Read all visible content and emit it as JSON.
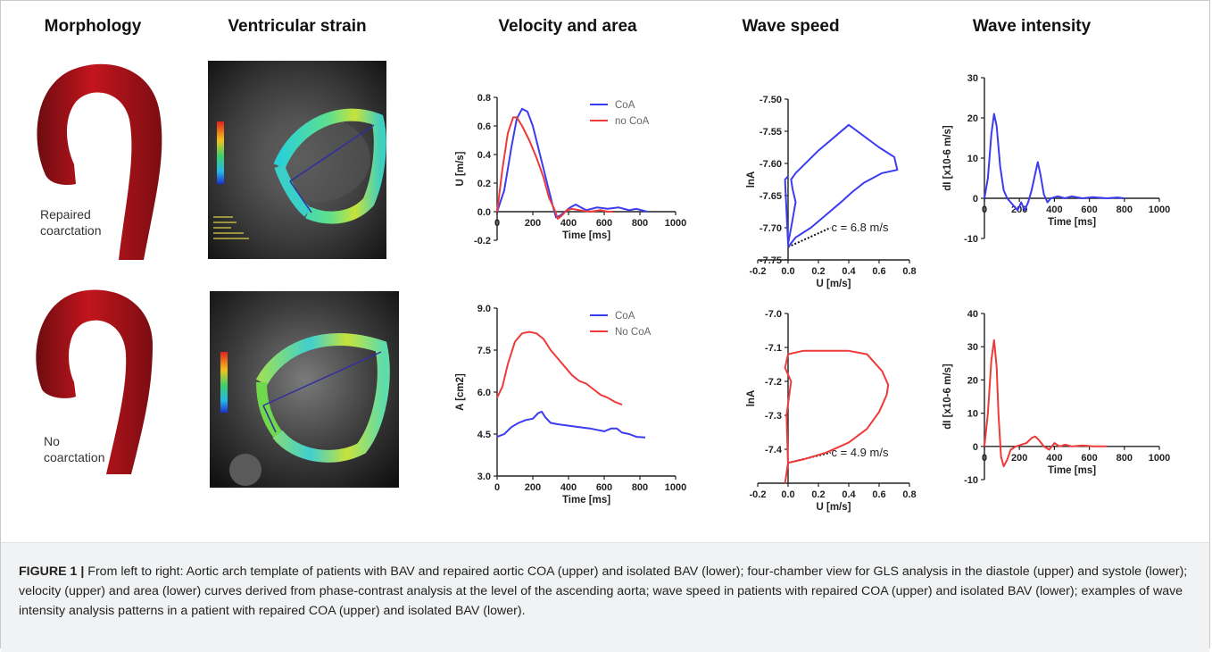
{
  "columns": {
    "morphology": "Morphology",
    "strain": "Ventricular strain",
    "velocity": "Velocity and area",
    "wave_speed": "Wave speed",
    "wave_intensity": "Wave intensity"
  },
  "morphology_labels": {
    "upper": [
      "Repaired",
      "coarctation"
    ],
    "lower": [
      "No",
      "coarctation"
    ]
  },
  "caption": {
    "figure_label": "FIGURE 1 |",
    "text": " From left to right: Aortic arch template of patients with BAV and repaired aortic COA (upper) and isolated BAV (lower); four-chamber view for GLS analysis in the diastole (upper) and systole (lower); velocity (upper) and area (lower) curves derived from phase-contrast analysis at the level of the ascending aorta; wave speed in patients with repaired COA (upper) and isolated BAV (lower); examples of wave intensity analysis patterns in a patient with repaired COA (upper) and isolated BAV (lower)."
  },
  "colors": {
    "coa": "#3b3bf0",
    "no_coa": "#ee3a3a",
    "aorta": "#b5121b"
  },
  "chart_data": [
    {
      "id": "velocity",
      "type": "line",
      "xlabel": "Time [ms]",
      "ylabel": "U [m/s]",
      "xlim": [
        0,
        1000
      ],
      "ylim": [
        -0.2,
        0.8
      ],
      "xticks": [
        0,
        200,
        400,
        600,
        800,
        1000
      ],
      "yticks": [
        -0.2,
        0.0,
        0.2,
        0.4,
        0.6,
        0.8
      ],
      "ytick_labels": [
        "-0.2",
        "0.0",
        "0.2",
        "0.4",
        "0.6",
        "0.8"
      ],
      "legend": "top-right",
      "series": [
        {
          "name": "CoA",
          "color": "#3b3bf0",
          "x": [
            0,
            40,
            80,
            110,
            140,
            170,
            200,
            240,
            280,
            310,
            330,
            350,
            380,
            410,
            440,
            470,
            500,
            560,
            620,
            680,
            740,
            780,
            810,
            840
          ],
          "y": [
            0,
            0.15,
            0.45,
            0.65,
            0.72,
            0.7,
            0.6,
            0.4,
            0.2,
            0.05,
            -0.04,
            -0.03,
            0,
            0.03,
            0.05,
            0.03,
            0.01,
            0.03,
            0.02,
            0.03,
            0.01,
            0.02,
            0.01,
            0
          ]
        },
        {
          "name": "no CoA",
          "color": "#ee3a3a",
          "x": [
            0,
            30,
            60,
            90,
            110,
            140,
            180,
            220,
            260,
            290,
            320,
            340,
            360,
            390,
            420,
            460,
            520,
            580,
            620,
            650
          ],
          "y": [
            0,
            0.3,
            0.55,
            0.66,
            0.66,
            0.6,
            0.5,
            0.38,
            0.24,
            0.1,
            0.02,
            -0.05,
            -0.03,
            0.01,
            0.02,
            0.01,
            0,
            0.01,
            0,
            0
          ]
        }
      ]
    },
    {
      "id": "area",
      "type": "line",
      "xlabel": "Time [ms]",
      "ylabel": "A [cm2]",
      "xlim": [
        0,
        1000
      ],
      "ylim": [
        3.0,
        9.0
      ],
      "xticks": [
        0,
        200,
        400,
        600,
        800,
        1000
      ],
      "yticks": [
        3.0,
        4.5,
        6.0,
        7.5,
        9.0
      ],
      "ytick_labels": [
        "3.0",
        "4.5",
        "6.0",
        "7.5",
        "9.0"
      ],
      "legend": "top-right",
      "series": [
        {
          "name": "CoA",
          "color": "#3b3bf0",
          "x": [
            0,
            40,
            80,
            120,
            160,
            200,
            230,
            250,
            270,
            300,
            340,
            400,
            460,
            520,
            560,
            600,
            640,
            670,
            700,
            740,
            780,
            830
          ],
          "y": [
            4.4,
            4.5,
            4.75,
            4.9,
            5.0,
            5.05,
            5.25,
            5.3,
            5.1,
            4.9,
            4.85,
            4.8,
            4.75,
            4.7,
            4.65,
            4.6,
            4.7,
            4.7,
            4.55,
            4.5,
            4.4,
            4.38
          ]
        },
        {
          "name": "No CoA",
          "color": "#ee3a3a",
          "x": [
            0,
            30,
            60,
            100,
            140,
            180,
            220,
            260,
            300,
            340,
            380,
            420,
            460,
            500,
            540,
            580,
            620,
            660,
            700
          ],
          "y": [
            5.8,
            6.2,
            7.0,
            7.8,
            8.1,
            8.15,
            8.1,
            7.9,
            7.5,
            7.2,
            6.9,
            6.6,
            6.4,
            6.3,
            6.1,
            5.9,
            5.8,
            5.65,
            5.55
          ]
        }
      ]
    },
    {
      "id": "wave-speed-upper",
      "type": "line",
      "xlabel": "U [m/s]",
      "ylabel": "lnA",
      "xlim": [
        -0.2,
        0.8
      ],
      "ylim": [
        -7.75,
        -7.5
      ],
      "xticks": [
        -0.2,
        0.0,
        0.2,
        0.4,
        0.6,
        0.8
      ],
      "xtick_labels": [
        "-0.2",
        "0.0",
        "0.2",
        "0.4",
        "0.6",
        "0.8"
      ],
      "yticks": [
        -7.75,
        -7.7,
        -7.65,
        -7.6,
        -7.55,
        -7.5
      ],
      "ytick_labels": [
        "-7.75",
        "-7.70",
        "-7.65",
        "-7.60",
        "-7.55",
        "-7.50"
      ],
      "annotation": "c = 6.8 m/s",
      "series": [
        {
          "color": "#3b3bf0",
          "x": [
            0.0,
            0.05,
            0.15,
            0.25,
            0.35,
            0.42,
            0.5,
            0.62,
            0.72,
            0.7,
            0.6,
            0.4,
            0.2,
            0.05,
            0.02,
            0.03,
            0.05,
            0.02,
            0.0,
            -0.02,
            0.0
          ],
          "y": [
            -7.73,
            -7.715,
            -7.7,
            -7.68,
            -7.66,
            -7.645,
            -7.63,
            -7.615,
            -7.61,
            -7.59,
            -7.575,
            -7.54,
            -7.58,
            -7.615,
            -7.625,
            -7.64,
            -7.66,
            -7.7,
            -7.725,
            -7.625,
            -7.62
          ]
        }
      ],
      "fit_line": {
        "x": [
          0.0,
          0.28
        ],
        "y": [
          -7.73,
          -7.7
        ]
      }
    },
    {
      "id": "wave-speed-lower",
      "type": "line",
      "xlabel": "U [m/s]",
      "ylabel": "lnA",
      "xlim": [
        -0.2,
        0.8
      ],
      "ylim": [
        -7.5,
        -7.0
      ],
      "xticks": [
        -0.2,
        0.0,
        0.2,
        0.4,
        0.6,
        0.8
      ],
      "xtick_labels": [
        "-0.2",
        "0.0",
        "0.2",
        "0.4",
        "0.6",
        "0.8"
      ],
      "yticks": [
        -7.4,
        -7.3,
        -7.2,
        -7.1,
        -7.0
      ],
      "ytick_labels": [
        "-7.4",
        "-7.3",
        "-7.2",
        "-7.1",
        "-7.0"
      ],
      "annotation": "c = 4.9 m/s",
      "series": [
        {
          "color": "#ee3a3a",
          "x": [
            -0.02,
            0.0,
            0.1,
            0.25,
            0.4,
            0.52,
            0.6,
            0.65,
            0.66,
            0.62,
            0.52,
            0.4,
            0.25,
            0.1,
            0.0,
            -0.02,
            0.02,
            -0.01,
            0.0
          ],
          "y": [
            -7.5,
            -7.44,
            -7.43,
            -7.41,
            -7.38,
            -7.34,
            -7.29,
            -7.24,
            -7.21,
            -7.17,
            -7.12,
            -7.11,
            -7.11,
            -7.11,
            -7.12,
            -7.16,
            -7.2,
            -7.3,
            -7.45
          ]
        }
      ],
      "fit_line": {
        "x": [
          0.0,
          0.28
        ],
        "y": [
          -7.44,
          -7.41
        ]
      }
    },
    {
      "id": "wave-intensity-upper",
      "type": "line",
      "xlabel": "Time [ms]",
      "ylabel": "dI [x10-6 m/s]",
      "xlim": [
        0,
        1000
      ],
      "ylim": [
        -10,
        30
      ],
      "xticks": [
        0,
        200,
        400,
        600,
        800,
        1000
      ],
      "yticks": [
        -10,
        0,
        10,
        20,
        30
      ],
      "series": [
        {
          "color": "#3b3bf0",
          "x": [
            0,
            20,
            40,
            55,
            70,
            90,
            110,
            130,
            150,
            170,
            190,
            210,
            230,
            250,
            270,
            290,
            305,
            320,
            340,
            360,
            380,
            420,
            460,
            500,
            560,
            620,
            700,
            760,
            800
          ],
          "y": [
            0,
            5,
            16,
            21,
            18,
            8,
            2,
            0,
            -1,
            -2,
            -3,
            -1,
            -3,
            -1,
            2,
            6,
            9,
            6,
            1,
            -1,
            0,
            0.5,
            0,
            0.5,
            0,
            0.3,
            0,
            0.2,
            0
          ]
        }
      ]
    },
    {
      "id": "wave-intensity-lower",
      "type": "line",
      "xlabel": "Time [ms]",
      "ylabel": "dI [x10-6 m/s]",
      "xlim": [
        0,
        1000
      ],
      "ylim": [
        -10,
        40
      ],
      "xticks": [
        0,
        200,
        400,
        600,
        800,
        1000
      ],
      "yticks": [
        -10,
        0,
        10,
        20,
        30,
        40
      ],
      "series": [
        {
          "color": "#ee3a3a",
          "x": [
            0,
            20,
            40,
            55,
            70,
            80,
            95,
            110,
            130,
            150,
            180,
            210,
            240,
            270,
            290,
            310,
            340,
            370,
            400,
            430,
            460,
            500,
            560,
            620,
            700
          ],
          "y": [
            0,
            10,
            26,
            32,
            24,
            10,
            -3,
            -6,
            -4,
            -1,
            0,
            0.5,
            1,
            2.5,
            3,
            2,
            0,
            -1,
            1,
            0,
            0.5,
            0,
            0.3,
            0,
            0
          ]
        }
      ]
    }
  ]
}
